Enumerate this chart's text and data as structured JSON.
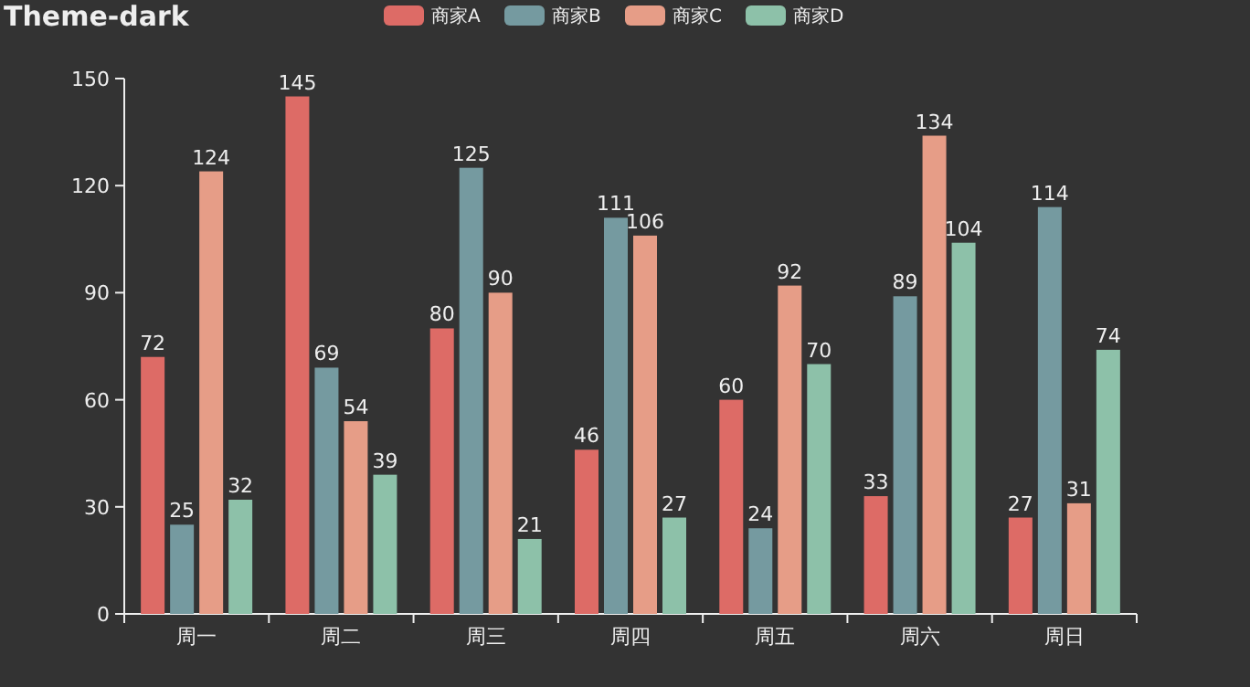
{
  "chart_data": {
    "type": "bar",
    "title": "Theme-dark",
    "categories": [
      "周一",
      "周二",
      "周三",
      "周四",
      "周五",
      "周六",
      "周日"
    ],
    "series": [
      {
        "name": "商家A",
        "color": "#dd6b66",
        "values": [
          72,
          145,
          80,
          46,
          60,
          33,
          27
        ]
      },
      {
        "name": "商家B",
        "color": "#759aa0",
        "values": [
          25,
          69,
          125,
          111,
          24,
          89,
          114
        ]
      },
      {
        "name": "商家C",
        "color": "#e69d87",
        "values": [
          124,
          54,
          90,
          106,
          92,
          134,
          31
        ]
      },
      {
        "name": "商家D",
        "color": "#8dc1a9",
        "values": [
          32,
          39,
          21,
          27,
          70,
          104,
          74
        ]
      }
    ],
    "ylim": [
      0,
      150
    ],
    "yticks": [
      0,
      30,
      60,
      90,
      120,
      150
    ],
    "grid": false,
    "legend": "top",
    "data_labels": true
  }
}
